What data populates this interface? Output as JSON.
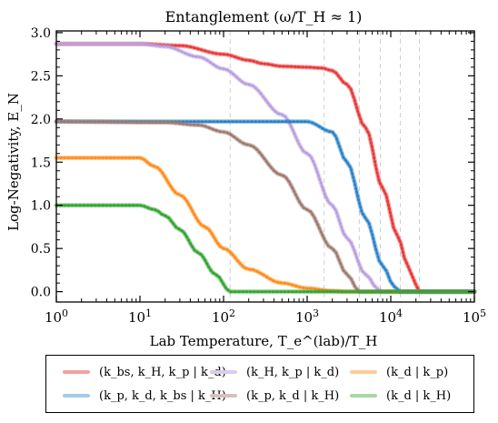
{
  "chart_data": {
    "type": "line",
    "title": "Entanglement (ω/T_H ≈ 1)",
    "xlabel": "Lab Temperature, T_e^(lab)/T_H",
    "ylabel": "Log-Negativity, E_N",
    "xscale": "log",
    "xlim": [
      1,
      100000
    ],
    "ylim": [
      -0.12,
      3.02
    ],
    "xticks": [
      1,
      10,
      100,
      1000,
      10000,
      100000
    ],
    "xtick_labels": [
      "10^0",
      "10^1",
      "10^2",
      "10^3",
      "10^4",
      "10^5"
    ],
    "yticks": [
      0.0,
      0.5,
      1.0,
      1.5,
      2.0,
      2.5,
      3.0
    ],
    "ytick_labels": [
      "0.0",
      "0.5",
      "1.0",
      "1.5",
      "2.0",
      "2.5",
      "3.0"
    ],
    "vertical_dashed_lines_x": [
      120,
      1600,
      4200,
      7500,
      13000,
      22000
    ],
    "legend_position": "below plot, 3 columns",
    "series": [
      {
        "name": "(k_bs, k_H, k_p | k_d)",
        "color": "#e8393a",
        "x": [
          1,
          10,
          30,
          100,
          200,
          300,
          500,
          1000,
          1500,
          2000,
          3000,
          5000,
          8000,
          12000,
          16000,
          20000,
          22000,
          100000
        ],
        "y": [
          2.87,
          2.87,
          2.85,
          2.75,
          2.68,
          2.64,
          2.61,
          2.6,
          2.59,
          2.56,
          2.4,
          1.9,
          1.2,
          0.65,
          0.3,
          0.08,
          0.0,
          0.0
        ]
      },
      {
        "name": "(k_H, k_p | k_d)",
        "color": "#b89fdf",
        "x": [
          1,
          10,
          20,
          50,
          100,
          200,
          500,
          1000,
          2000,
          3000,
          5000,
          7000,
          8000,
          100000
        ],
        "y": [
          2.87,
          2.87,
          2.84,
          2.72,
          2.58,
          2.4,
          2.05,
          1.6,
          1.0,
          0.62,
          0.2,
          0.03,
          0.0,
          0.0
        ]
      },
      {
        "name": "(k_d | k_p)",
        "color": "#ff8c1a",
        "x": [
          1,
          10,
          15,
          30,
          60,
          100,
          200,
          500,
          1000,
          2000,
          3000,
          100000
        ],
        "y": [
          1.55,
          1.55,
          1.45,
          1.12,
          0.75,
          0.5,
          0.26,
          0.1,
          0.04,
          0.01,
          0.0,
          0.0
        ]
      },
      {
        "name": "(k_p, k_d, k_bs | k_H)",
        "color": "#2b82c9",
        "x": [
          1,
          1000,
          2000,
          3000,
          5000,
          8000,
          11000,
          13000,
          100000
        ],
        "y": [
          1.97,
          1.97,
          1.85,
          1.5,
          0.85,
          0.3,
          0.06,
          0.0,
          0.0
        ]
      },
      {
        "name": "(k_p, k_d | k_H)",
        "color": "#9e7b6e",
        "x": [
          1,
          20,
          50,
          100,
          200,
          500,
          1000,
          2000,
          3000,
          4200,
          100000
        ],
        "y": [
          1.97,
          1.96,
          1.93,
          1.85,
          1.7,
          1.35,
          0.95,
          0.5,
          0.2,
          0.0,
          0.0
        ]
      },
      {
        "name": "(k_d | k_H)",
        "color": "#33a532",
        "x": [
          1,
          10,
          15,
          20,
          30,
          50,
          80,
          120,
          100000
        ],
        "y": [
          1.0,
          1.0,
          0.95,
          0.88,
          0.72,
          0.45,
          0.2,
          0.0,
          0.0
        ]
      }
    ]
  },
  "legend": {
    "items": [
      "(k_bs, k_H, k_p | k_d)",
      "(k_H, k_p | k_d)",
      "(k_d | k_p)",
      "(k_p, k_d, k_bs | k_H)",
      "(k_p, k_d | k_H)",
      "(k_d | k_H)"
    ]
  }
}
